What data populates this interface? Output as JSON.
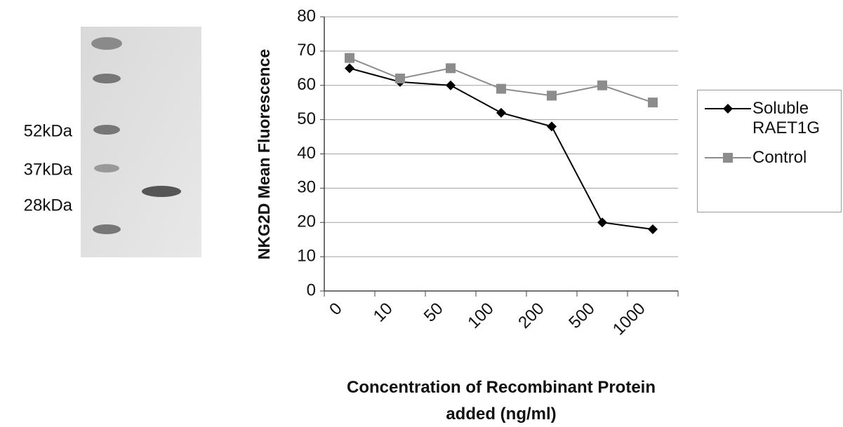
{
  "gel": {
    "labels": [
      "52kDa",
      "37kDa",
      "28kDa"
    ]
  },
  "chart_data": {
    "type": "line",
    "y_label": "NKG2D Mean Fluorescence",
    "x_label": "Concentration of Recombinant Protein added (ng/ml)",
    "categories": [
      "0",
      "10",
      "50",
      "100",
      "200",
      "500",
      "1000"
    ],
    "series": [
      {
        "name": "Soluble RAET1G",
        "color": "#000000",
        "marker": "diamond",
        "values": [
          65,
          61,
          60,
          52,
          48,
          20,
          18
        ]
      },
      {
        "name": "Control",
        "color": "#8c8c8c",
        "marker": "square",
        "values": [
          68,
          62,
          65,
          59,
          57,
          60,
          55
        ]
      }
    ],
    "ylim": [
      0,
      80
    ],
    "yticks": [
      0,
      10,
      20,
      30,
      40,
      50,
      60,
      70,
      80
    ],
    "grid": true,
    "legend": "right"
  }
}
